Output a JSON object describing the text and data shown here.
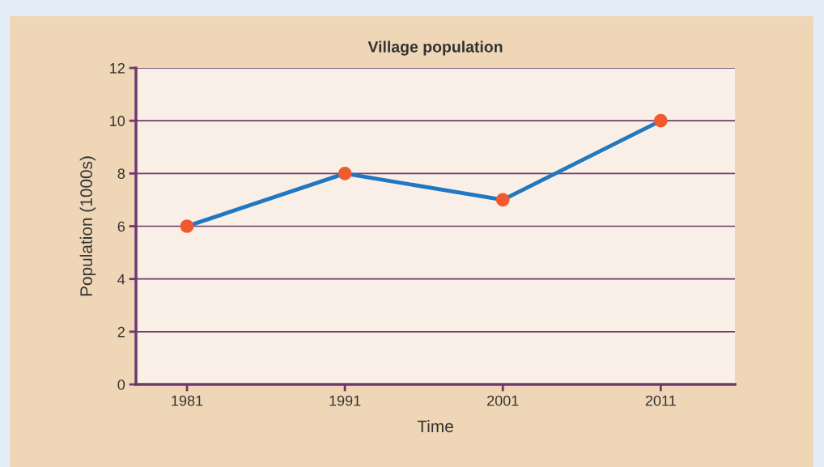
{
  "chart_data": {
    "type": "line",
    "title": "Village population",
    "xlabel": "Time",
    "ylabel": "Population (1000s)",
    "categories": [
      "1981",
      "1991",
      "2001",
      "2011"
    ],
    "series": [
      {
        "color": "#1f78c1",
        "values": [
          6,
          8,
          7,
          10
        ]
      }
    ],
    "ylim": [
      0,
      12
    ],
    "yticks": [
      0,
      2,
      4,
      6,
      8,
      10,
      12
    ],
    "grid": "y",
    "marker": "circle",
    "line_style": "solid"
  }
}
